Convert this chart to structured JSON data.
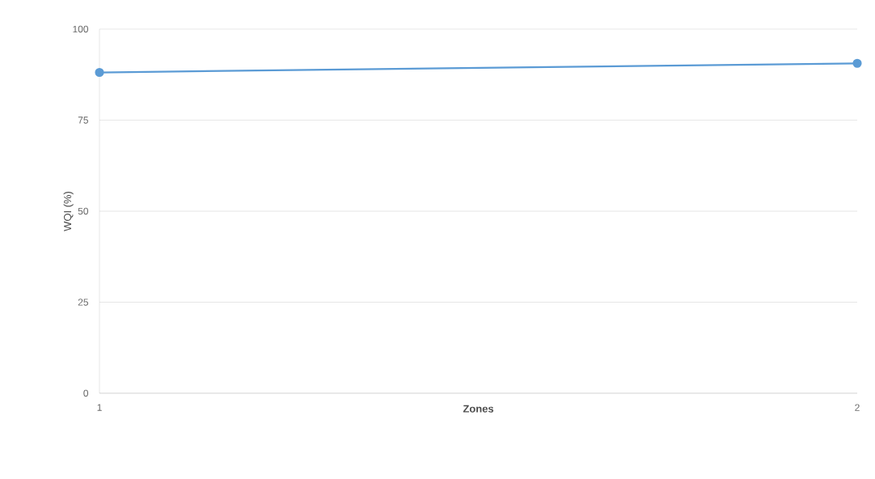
{
  "chart_data": {
    "type": "line",
    "xlabel": "Zones",
    "ylabel": "WQI (%)",
    "x": [
      1,
      2
    ],
    "series": [
      {
        "color": "#5b9bd5",
        "values": [
          88.1,
          90.6
        ]
      }
    ],
    "xlim": [
      1,
      2
    ],
    "xticks": [
      1,
      2
    ],
    "ylim": [
      0,
      100
    ],
    "yticks": [
      0,
      25,
      50,
      75,
      100
    ],
    "grid": "y",
    "marker": "circle",
    "line_style": "solid"
  }
}
